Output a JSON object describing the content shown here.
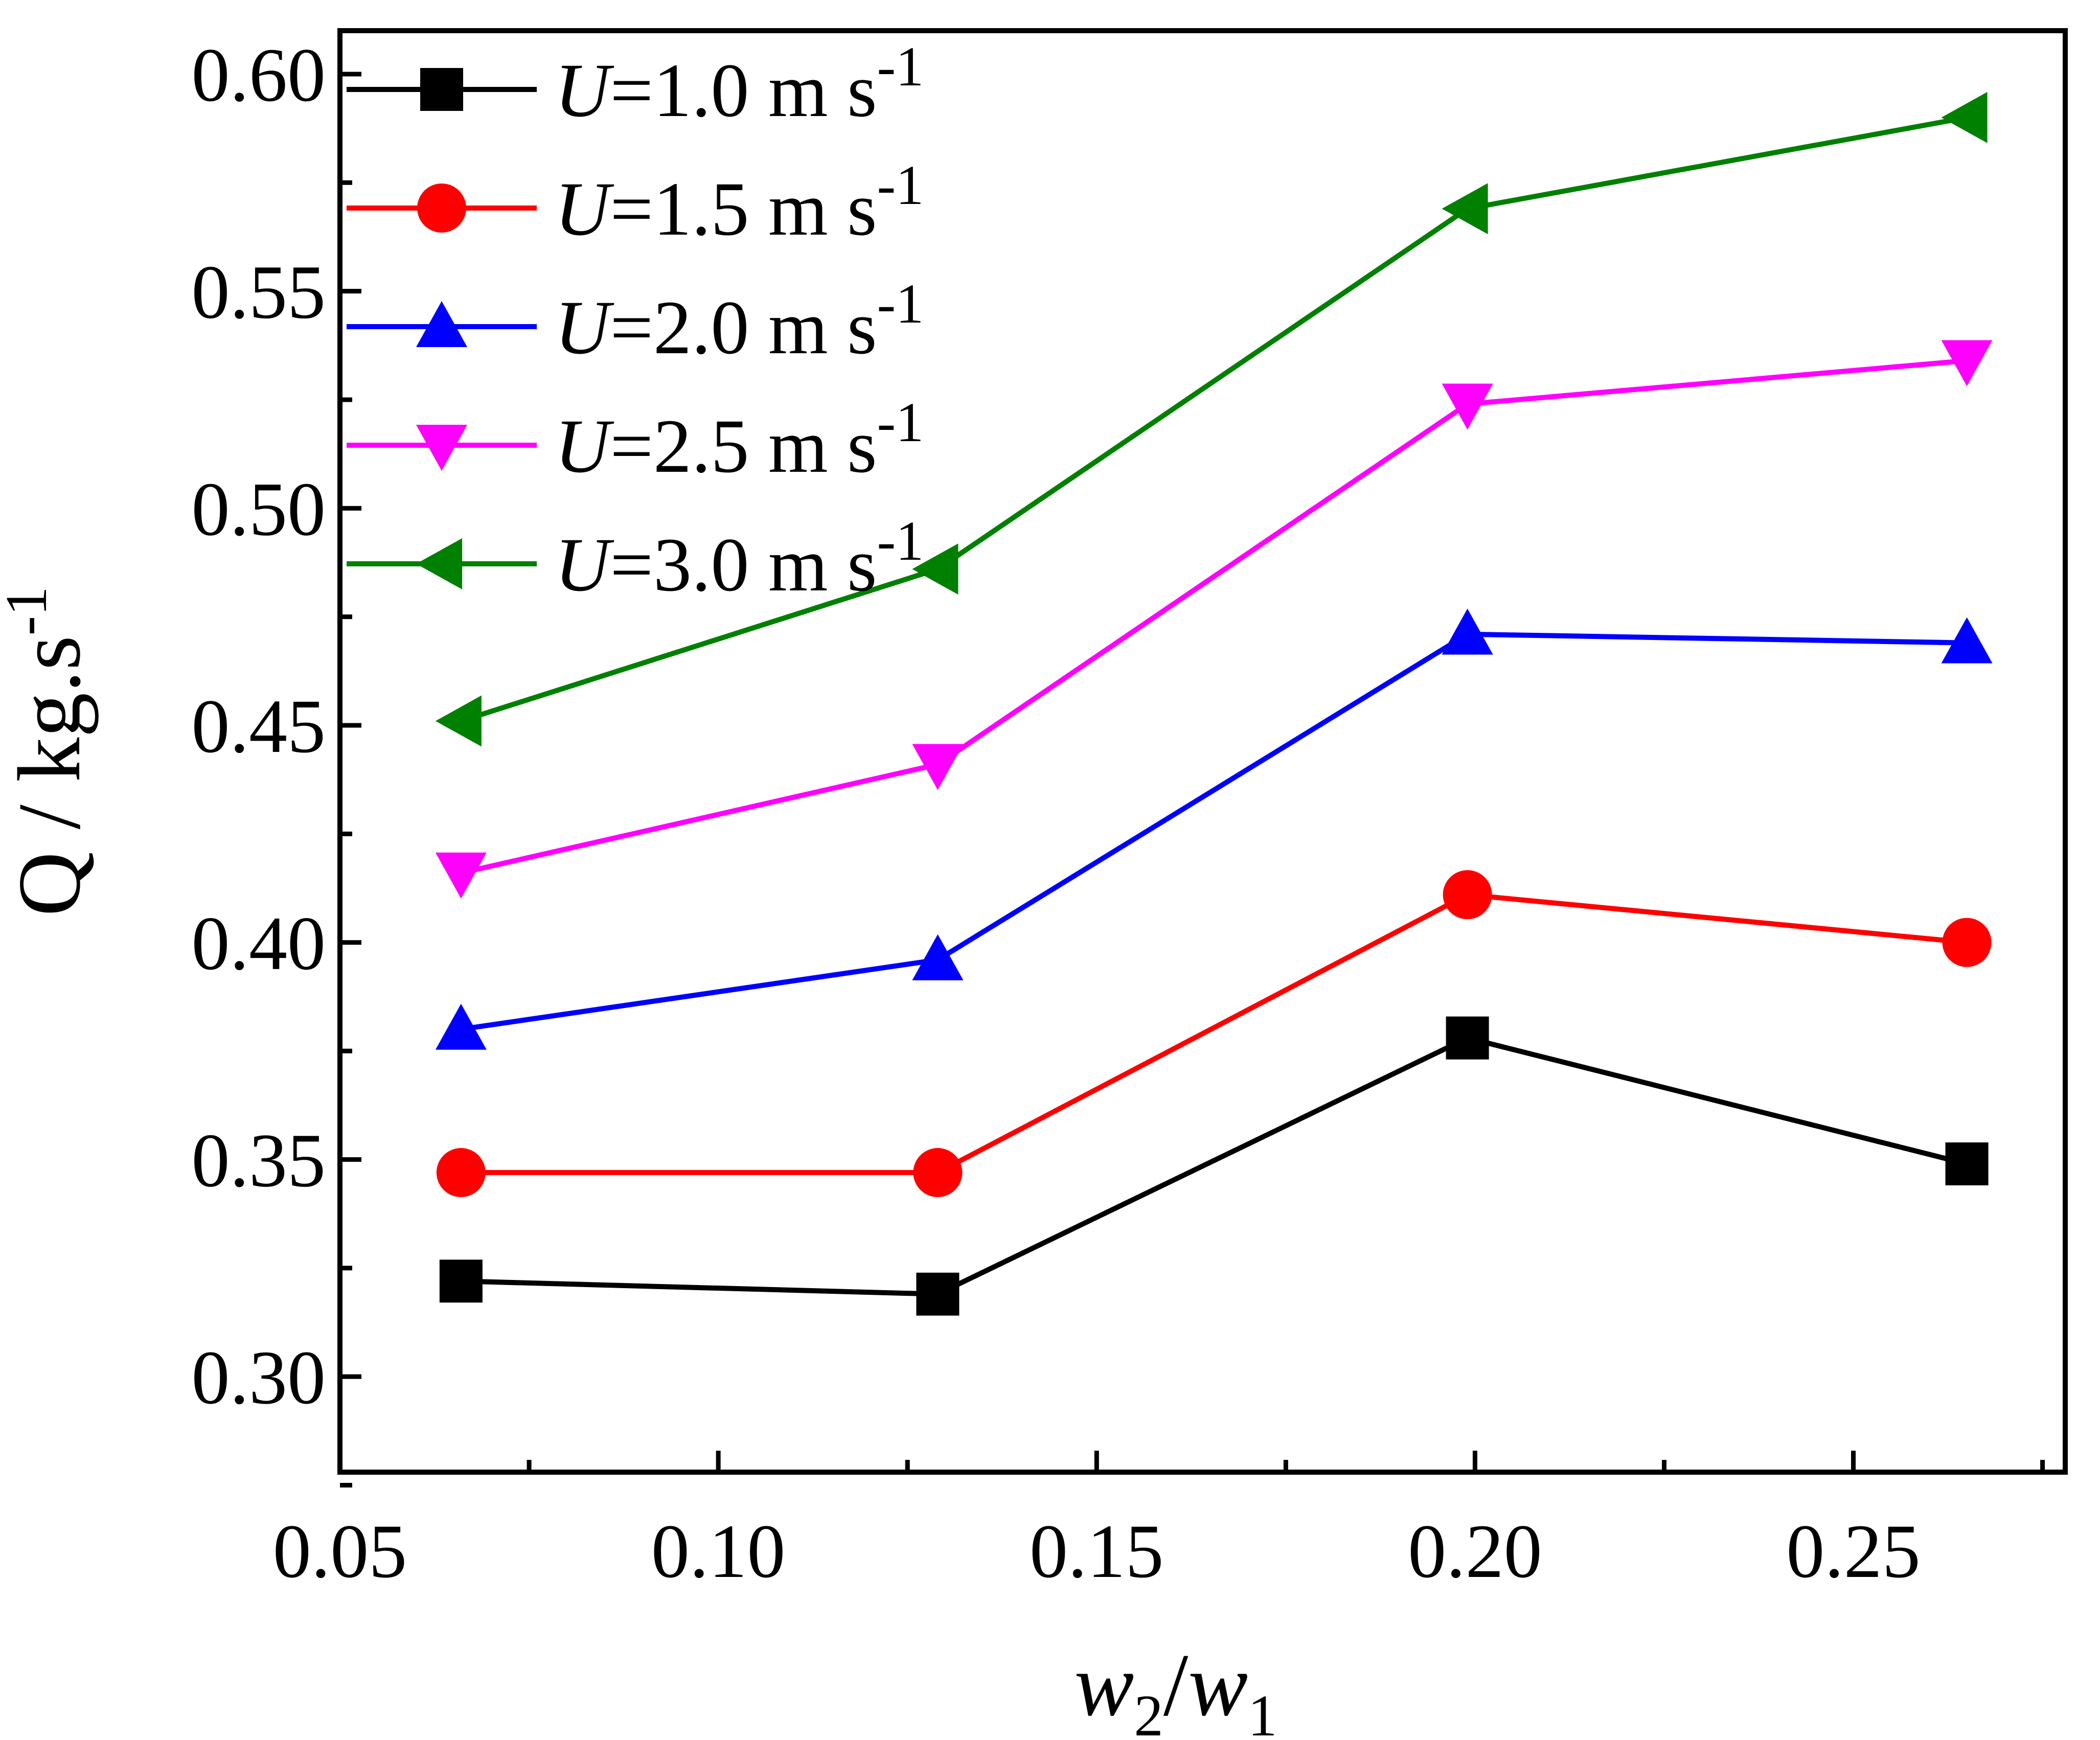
{
  "chart_data": {
    "type": "line",
    "title": "",
    "xlabel": "w2/w1",
    "xlabel_parts": {
      "w_main": "w",
      "sub_1": "2",
      "slash": "/",
      "sub_2": "1"
    },
    "ylabel": "Q / kg.s-1",
    "ylabel_parts": {
      "main": "Q / kg.s",
      "sup": "-1"
    },
    "xlim": [
      0.05,
      0.278
    ],
    "ylim": [
      0.278,
      0.61
    ],
    "x_ticks": [
      0.05,
      0.1,
      0.15,
      0.2,
      0.25
    ],
    "x_tick_labels": [
      "0.05",
      "0.10",
      "0.15",
      "0.20",
      "0.25"
    ],
    "y_ticks": [
      0.3,
      0.35,
      0.4,
      0.45,
      0.5,
      0.55,
      0.6
    ],
    "y_tick_labels": [
      "0.30",
      "0.35",
      "0.40",
      "0.45",
      "0.50",
      "0.55",
      "0.60"
    ],
    "grid": false,
    "legend_position": "top-left",
    "x": [
      0.066,
      0.129,
      0.199,
      0.265
    ],
    "series": [
      {
        "name": "U=1.0 m s-1",
        "var": "U",
        "eq": "=1.0 m s",
        "sup": "-1",
        "color": "#000000",
        "marker": "square",
        "values": [
          0.322,
          0.319,
          0.378,
          0.349
        ]
      },
      {
        "name": "U=1.5 m s-1",
        "var": "U",
        "eq": "=1.5 m s",
        "sup": "-1",
        "color": "#ff0000",
        "marker": "circle",
        "values": [
          0.347,
          0.347,
          0.411,
          0.4
        ]
      },
      {
        "name": "U=2.0 m s-1",
        "var": "U",
        "eq": "=2.0 m s",
        "sup": "-1",
        "color": "#0000ff",
        "marker": "triangle-up",
        "values": [
          0.38,
          0.396,
          0.471,
          0.469
        ]
      },
      {
        "name": "U=2.5 m s-1",
        "var": "U",
        "eq": "=2.5 m s",
        "sup": "-1",
        "color": "#ff00ff",
        "marker": "triangle-down",
        "values": [
          0.416,
          0.441,
          0.524,
          0.534
        ]
      },
      {
        "name": "U=3.0 m s-1",
        "var": "U",
        "eq": "=3.0 m s",
        "sup": "-1",
        "color": "#008000",
        "marker": "triangle-left",
        "values": [
          0.451,
          0.486,
          0.569,
          0.59
        ]
      }
    ]
  }
}
